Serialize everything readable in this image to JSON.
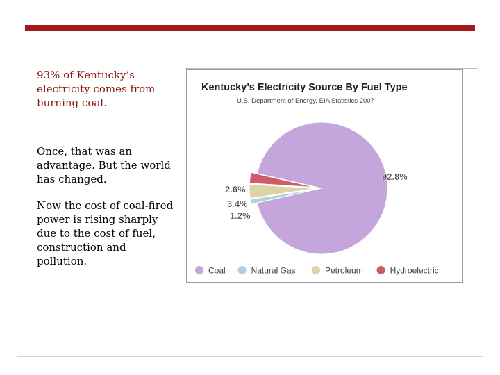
{
  "slide": {
    "paragraph1": "93% of Kentucky’s electricity comes from burning coal.",
    "paragraph2": "Once, that was an advantage. But the world has changed.",
    "paragraph3": "Now the cost of coal-fired power is rising sharply due to the cost of fuel, construction and pollution.",
    "accent_color": "#a11b1b"
  },
  "chart_data": {
    "type": "pie",
    "title": "Kentucky’s Electricity Source By Fuel Type",
    "subtitle": "U.S. Department of Energy, EIA Statistics 2007",
    "legend_position": "bottom",
    "slices": [
      {
        "name": "Coal",
        "value": 92.8,
        "label": "92.8%",
        "color": "#c4a6dc"
      },
      {
        "name": "Natural Gas",
        "value": 1.2,
        "label": "1.2%",
        "color": "#a8d6dd"
      },
      {
        "name": "Petroleum",
        "value": 3.4,
        "label": "3.4%",
        "color": "#ddd3a6"
      },
      {
        "name": "Hydroelectric",
        "value": 2.6,
        "label": "2.6%",
        "color": "#d15a67"
      }
    ]
  }
}
